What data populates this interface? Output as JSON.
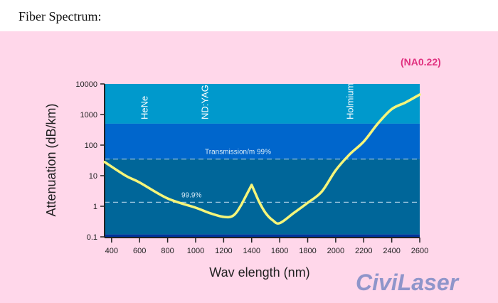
{
  "header": {
    "title": "Fiber Spectrum:"
  },
  "note": "(NA0.22)",
  "watermark": "CiviLaser",
  "chart_data": {
    "type": "line",
    "title": "",
    "xlabel": "Wav elength (nm)",
    "ylabel": "Attenuation (dB/km)",
    "xlim": [
      350,
      2600
    ],
    "ylim": [
      0.1,
      10000
    ],
    "yscale": "log",
    "x_ticks": [
      400,
      600,
      800,
      1000,
      1200,
      1400,
      1600,
      1800,
      2000,
      2200,
      2400,
      2600
    ],
    "y_ticks": [
      10000,
      1000,
      100,
      10,
      1,
      0.1
    ],
    "y_tick_labels": [
      "10000",
      "1000",
      "100",
      "10",
      "1",
      "0.1"
    ],
    "series": [
      {
        "color": "#f5f57a",
        "x": [
          350,
          500,
          600,
          800,
          1000,
          1100,
          1200,
          1270,
          1330,
          1400,
          1450,
          1500,
          1550,
          1600,
          1700,
          1800,
          1900,
          2000,
          2100,
          2200,
          2300,
          2400,
          2500,
          2600
        ],
        "y": [
          28,
          10,
          6,
          1.8,
          0.9,
          0.6,
          0.45,
          0.5,
          1.2,
          5,
          1.5,
          0.6,
          0.35,
          0.28,
          0.6,
          1.3,
          3,
          15,
          50,
          130,
          500,
          1500,
          2500,
          4500
        ]
      }
    ],
    "bands": [
      {
        "from": 500,
        "to": 10000,
        "color": "#0099cc"
      },
      {
        "from": 35,
        "to": 500,
        "color": "#0066cc"
      },
      {
        "from": 0.12,
        "to": 35,
        "color": "#006699"
      },
      {
        "from": 0.1,
        "to": 0.12,
        "color": "#003399"
      }
    ],
    "reference_lines": [
      {
        "y": 35,
        "label": "Transmission/m 99%"
      },
      {
        "y": 1.35,
        "label": "99.9%"
      }
    ],
    "annotations": [
      {
        "x": 633,
        "text": "HeNe"
      },
      {
        "x": 1064,
        "text": "ND:YAG"
      },
      {
        "x": 2100,
        "text": "Holmium"
      }
    ],
    "grid": false,
    "legend": "none"
  }
}
